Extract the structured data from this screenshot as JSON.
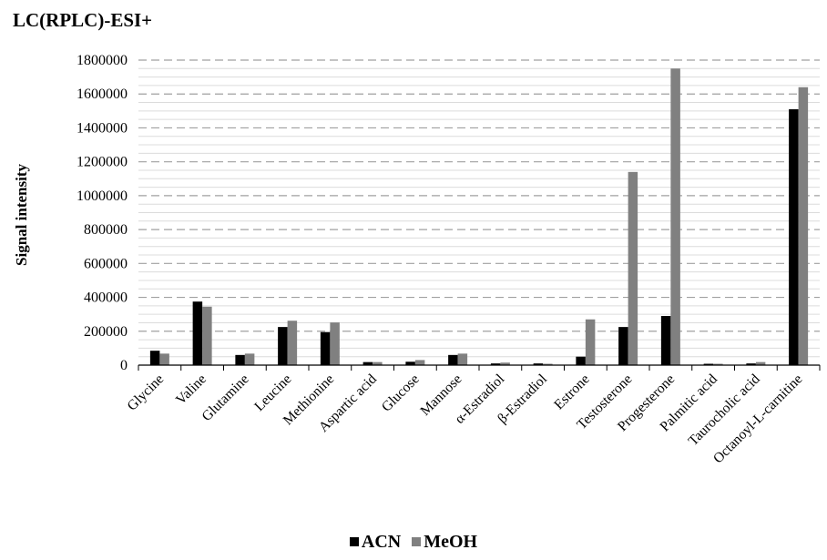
{
  "chart_data": {
    "type": "bar",
    "title": "LC(RPLC)-ESI+",
    "ylabel": "Signal intensity",
    "xlabel": "",
    "ylim": [
      0,
      1800000
    ],
    "yticks": [
      0,
      200000,
      400000,
      600000,
      800000,
      1000000,
      1200000,
      1400000,
      1600000,
      1800000
    ],
    "grid": true,
    "legend_position": "bottom",
    "categories": [
      "Glycine",
      "Valine",
      "Glutamine",
      "Leucine",
      "Methionine",
      "Aspartic acid",
      "Glucose",
      "Mannose",
      "α-Estradiol",
      "β-Estradiol",
      "Estrone",
      "Testosterone",
      "Progesterone",
      "Palmitic acid",
      "Taurocholic acid",
      "Octanoyl-L-carnitine"
    ],
    "series": [
      {
        "name": "ACN",
        "color": "#000000",
        "values": [
          85000,
          375000,
          60000,
          225000,
          195000,
          18000,
          20000,
          60000,
          10000,
          10000,
          50000,
          225000,
          290000,
          8000,
          10000,
          1510000
        ]
      },
      {
        "name": "MeOH",
        "color": "#808080",
        "values": [
          68000,
          345000,
          68000,
          262000,
          252000,
          18000,
          30000,
          68000,
          15000,
          8000,
          270000,
          1140000,
          1750000,
          8000,
          18000,
          1640000
        ]
      }
    ]
  }
}
